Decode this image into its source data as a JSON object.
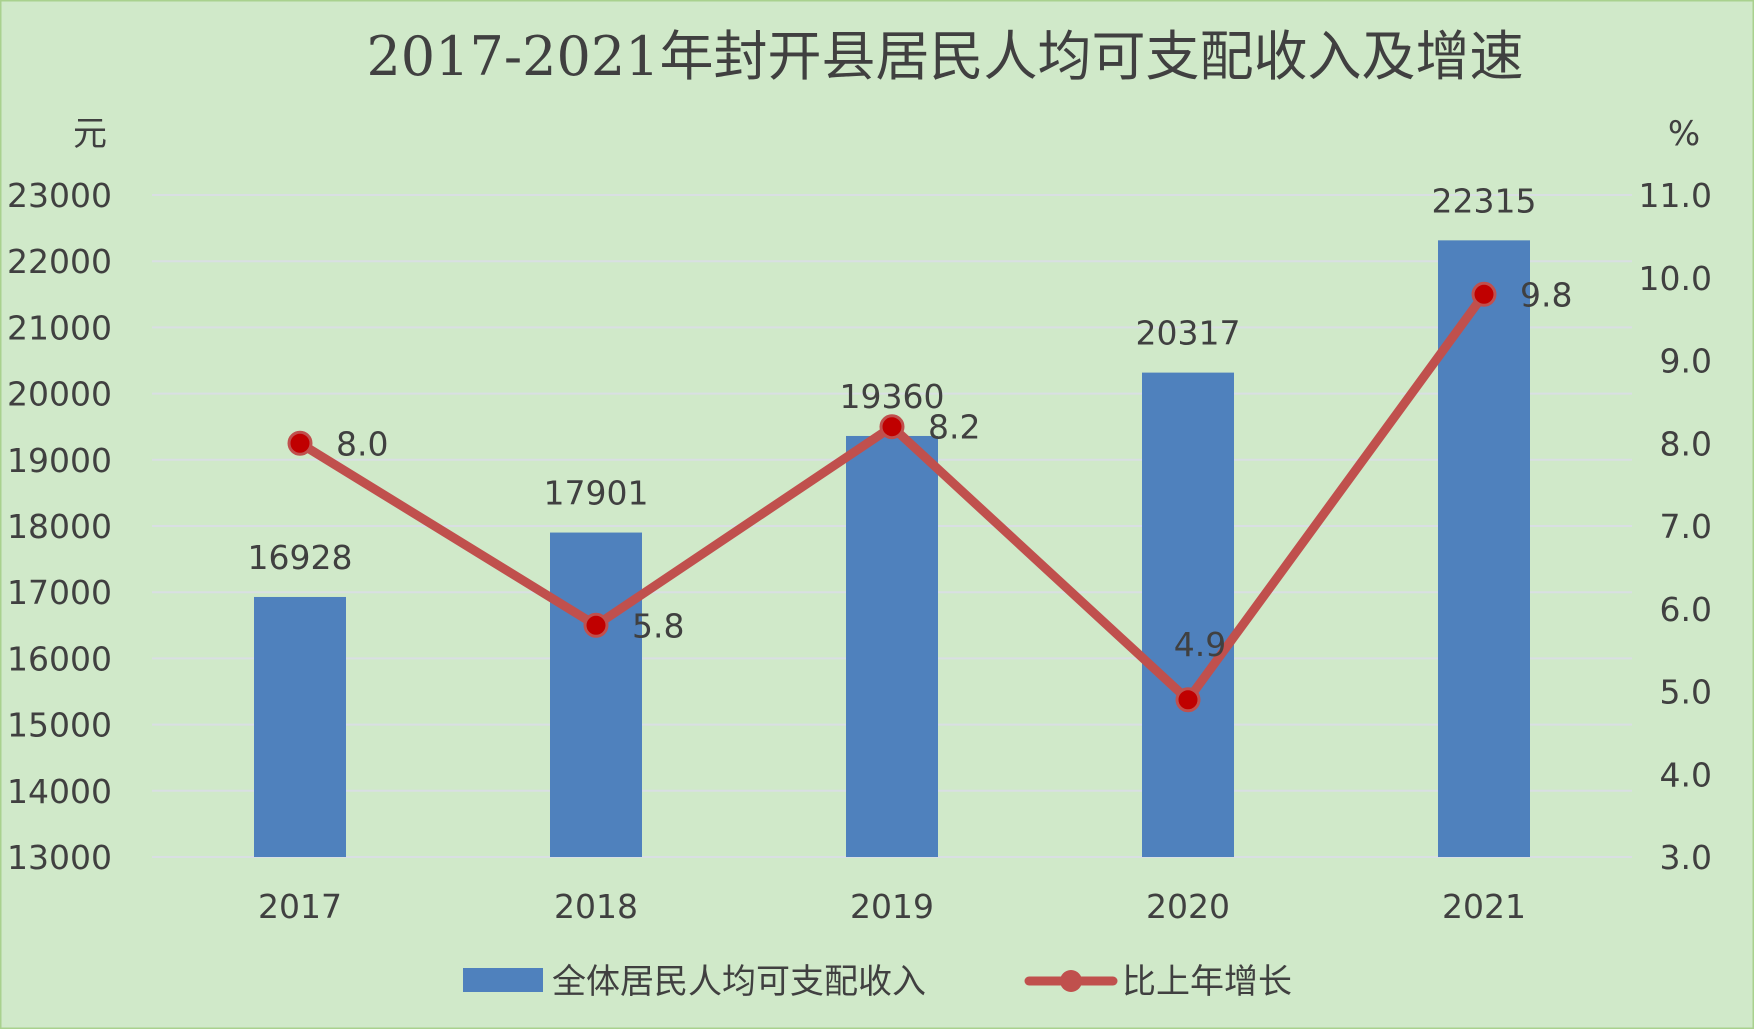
{
  "chart_data": {
    "type": "bar",
    "title": "2017-2021年封开县居民人均可支配收入及增速",
    "y_left_unit": "元",
    "y_right_unit": "%",
    "categories": [
      "2017",
      "2018",
      "2019",
      "2020",
      "2021"
    ],
    "y_left_ticks": [
      "13000",
      "14000",
      "15000",
      "16000",
      "17000",
      "18000",
      "19000",
      "20000",
      "21000",
      "22000",
      "23000"
    ],
    "y_right_ticks": [
      "3.0",
      "4.0",
      "5.0",
      "6.0",
      "7.0",
      "8.0",
      "9.0",
      "10.0",
      "11.0"
    ],
    "ylim_left": [
      13000,
      23000
    ],
    "ylim_right": [
      3.0,
      11.0
    ],
    "grid": true,
    "legend_position": "bottom",
    "series": [
      {
        "name": "全体居民人均可支配收入",
        "kind": "bar",
        "axis": "left",
        "color": "#4f81bd",
        "values": [
          16928,
          17901,
          19360,
          20317,
          22315
        ],
        "labels": [
          "16928",
          "17901",
          "19360",
          "20317",
          "22315"
        ]
      },
      {
        "name": "比上年增长",
        "kind": "line",
        "axis": "right",
        "color": "#c0504d",
        "marker_color": "#c00000",
        "values": [
          8.0,
          5.8,
          8.2,
          4.9,
          9.8
        ],
        "labels": [
          "8.0",
          "5.8",
          "8.2",
          "4.9",
          "9.8"
        ]
      }
    ],
    "colors": {
      "background": "#d0e9c9",
      "border": "#a9d18e",
      "gridline": "#d9dfe3",
      "text": "#404040"
    }
  }
}
